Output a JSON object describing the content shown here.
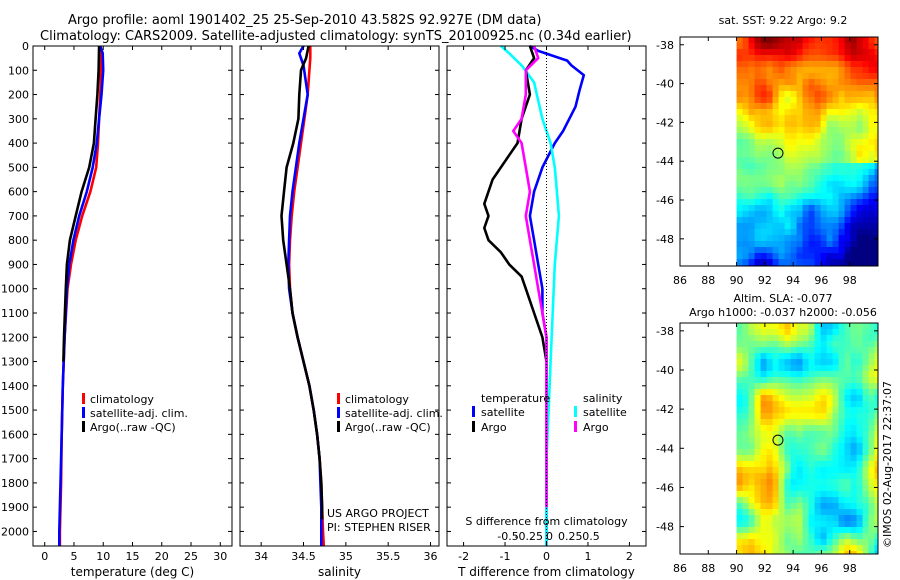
{
  "header": {
    "line1": "Argo profile: aoml 1901402_25 25-Sep-2010 43.582S 92.927E (DM data)",
    "line2": "Climatology: CARS2009. Satellite-adjusted climatology: synTS_20100925.nc (0.34d earlier)"
  },
  "colors": {
    "red": "#ff0000",
    "blue": "#0000ff",
    "black": "#000000",
    "cyan": "#00ffff",
    "magenta": "#ff00ff"
  },
  "chart_data": [
    {
      "type": "line",
      "id": "temperature",
      "xlabel": "temperature (deg C)",
      "xlim": [
        -2,
        32
      ],
      "ylim": [
        2060,
        0
      ],
      "xticks": [
        0,
        5,
        10,
        15,
        20,
        25,
        30
      ],
      "yticks": [
        0,
        100,
        200,
        300,
        400,
        500,
        600,
        700,
        800,
        900,
        1000,
        1100,
        1200,
        1300,
        1400,
        1500,
        1600,
        1700,
        1800,
        1900,
        2000
      ],
      "legend": [
        "climatology",
        "satellite-adj. clim.",
        "Argo(..raw -QC)"
      ],
      "series": [
        {
          "name": "climatology",
          "color": "red",
          "points": [
            [
              9.4,
              0
            ],
            [
              9.6,
              50
            ],
            [
              9.6,
              100
            ],
            [
              9.5,
              200
            ],
            [
              9.3,
              300
            ],
            [
              9.1,
              400
            ],
            [
              8.8,
              500
            ],
            [
              7.8,
              600
            ],
            [
              6.4,
              700
            ],
            [
              5.3,
              800
            ],
            [
              4.5,
              900
            ],
            [
              3.9,
              1000
            ],
            [
              3.4,
              1200
            ],
            [
              3.1,
              1400
            ],
            [
              2.9,
              1600
            ],
            [
              2.8,
              1800
            ],
            [
              2.6,
              2000
            ],
            [
              2.6,
              2060
            ]
          ]
        },
        {
          "name": "satellite-adj. clim.",
          "color": "blue",
          "points": [
            [
              9.5,
              0
            ],
            [
              9.9,
              30
            ],
            [
              10.0,
              100
            ],
            [
              9.7,
              200
            ],
            [
              9.3,
              300
            ],
            [
              8.9,
              400
            ],
            [
              8.2,
              500
            ],
            [
              7.2,
              600
            ],
            [
              5.9,
              700
            ],
            [
              4.9,
              800
            ],
            [
              4.2,
              900
            ],
            [
              3.8,
              1000
            ],
            [
              3.4,
              1200
            ],
            [
              3.1,
              1400
            ],
            [
              2.9,
              1600
            ],
            [
              2.7,
              1800
            ],
            [
              2.5,
              2000
            ],
            [
              2.5,
              2060
            ]
          ]
        },
        {
          "name": "Argo(..raw -QC)",
          "color": "black",
          "points": [
            [
              9.3,
              0
            ],
            [
              9.2,
              100
            ],
            [
              9.0,
              200
            ],
            [
              8.7,
              300
            ],
            [
              8.4,
              400
            ],
            [
              7.6,
              500
            ],
            [
              6.3,
              600
            ],
            [
              5.3,
              700
            ],
            [
              4.3,
              800
            ],
            [
              3.8,
              900
            ],
            [
              3.6,
              1000
            ],
            [
              3.3,
              1200
            ],
            [
              3.2,
              1300
            ]
          ]
        }
      ]
    },
    {
      "type": "line",
      "id": "salinity",
      "xlabel": "salinity",
      "xlim": [
        33.75,
        36.1
      ],
      "ylim": [
        2060,
        0
      ],
      "xticks": [
        34,
        34.5,
        35,
        35.5,
        36
      ],
      "legend": [
        "climatology",
        "satellite-adj. clim.",
        "Argo(..raw -QC)"
      ],
      "annotation": [
        "US ARGO PROJECT",
        "PI: STEPHEN RISER"
      ],
      "series": [
        {
          "name": "climatology",
          "color": "red",
          "points": [
            [
              34.58,
              0
            ],
            [
              34.58,
              50
            ],
            [
              34.57,
              100
            ],
            [
              34.55,
              200
            ],
            [
              34.51,
              300
            ],
            [
              34.47,
              400
            ],
            [
              34.43,
              500
            ],
            [
              34.39,
              600
            ],
            [
              34.36,
              700
            ],
            [
              34.34,
              800
            ],
            [
              34.33,
              900
            ],
            [
              34.34,
              1000
            ],
            [
              34.37,
              1100
            ],
            [
              34.43,
              1200
            ],
            [
              34.5,
              1300
            ],
            [
              34.57,
              1400
            ],
            [
              34.62,
              1500
            ],
            [
              34.66,
              1600
            ],
            [
              34.69,
              1700
            ],
            [
              34.71,
              1800
            ],
            [
              34.72,
              1900
            ],
            [
              34.73,
              2000
            ],
            [
              34.74,
              2060
            ]
          ]
        },
        {
          "name": "satellite-adj. clim.",
          "color": "blue",
          "points": [
            [
              34.5,
              0
            ],
            [
              34.45,
              30
            ],
            [
              34.5,
              80
            ],
            [
              34.55,
              200
            ],
            [
              34.5,
              300
            ],
            [
              34.45,
              400
            ],
            [
              34.41,
              500
            ],
            [
              34.37,
              600
            ],
            [
              34.34,
              700
            ],
            [
              34.33,
              800
            ],
            [
              34.32,
              900
            ],
            [
              34.33,
              1000
            ],
            [
              34.37,
              1100
            ],
            [
              34.43,
              1200
            ],
            [
              34.5,
              1300
            ],
            [
              34.57,
              1400
            ],
            [
              34.62,
              1500
            ],
            [
              34.66,
              1600
            ],
            [
              34.69,
              1700
            ],
            [
              34.7,
              1800
            ],
            [
              34.71,
              1900
            ],
            [
              34.71,
              2000
            ],
            [
              34.71,
              2060
            ]
          ]
        },
        {
          "name": "Argo(..raw -QC)",
          "color": "black",
          "points": [
            [
              34.56,
              0
            ],
            [
              34.53,
              50
            ],
            [
              34.47,
              100
            ],
            [
              34.45,
              200
            ],
            [
              34.44,
              300
            ],
            [
              34.38,
              400
            ],
            [
              34.3,
              500
            ],
            [
              34.27,
              600
            ],
            [
              34.24,
              700
            ],
            [
              34.26,
              800
            ],
            [
              34.3,
              900
            ],
            [
              34.34,
              1000
            ],
            [
              34.37,
              1100
            ],
            [
              34.43,
              1200
            ],
            [
              34.5,
              1300
            ],
            [
              34.57,
              1400
            ],
            [
              34.62,
              1500
            ],
            [
              34.66,
              1600
            ],
            [
              34.69,
              1700
            ],
            [
              34.71,
              1800
            ],
            [
              34.72,
              1900
            ],
            [
              34.72,
              1950
            ]
          ]
        }
      ]
    },
    {
      "type": "line",
      "id": "differences",
      "xlabel": "T difference from climatology",
      "top_label": "S difference from climatology",
      "xlim": [
        -2.4,
        2.4
      ],
      "ylim": [
        2060,
        0
      ],
      "xticks": [
        -2,
        -1,
        0,
        1,
        2
      ],
      "s_xticks": [
        "-0.5",
        "-0.25",
        "0",
        "0.25",
        "0.5"
      ],
      "legend_titles": [
        "temperature",
        "salinity"
      ],
      "legend": [
        "satellite",
        "Argo",
        "satellite",
        "Argo"
      ],
      "series": [
        {
          "name": "temperature satellite",
          "color": "blue",
          "points": [
            [
              -0.4,
              0
            ],
            [
              -0.2,
              20
            ],
            [
              0.5,
              60
            ],
            [
              0.6,
              80
            ],
            [
              0.9,
              120
            ],
            [
              0.8,
              180
            ],
            [
              0.7,
              250
            ],
            [
              0.4,
              350
            ],
            [
              0.2,
              400
            ],
            [
              -0.1,
              500
            ],
            [
              -0.3,
              600
            ],
            [
              -0.4,
              700
            ],
            [
              -0.3,
              800
            ],
            [
              -0.2,
              900
            ],
            [
              -0.1,
              1000
            ],
            [
              -0.1,
              1100
            ],
            [
              0,
              1200
            ],
            [
              0,
              1300
            ],
            [
              0,
              2060
            ]
          ]
        },
        {
          "name": "salinity satellite",
          "color": "cyan",
          "points": [
            [
              -1.1,
              0
            ],
            [
              -0.9,
              30
            ],
            [
              -0.6,
              80
            ],
            [
              -0.3,
              150
            ],
            [
              -0.1,
              300
            ],
            [
              0.1,
              400
            ],
            [
              0.2,
              500
            ],
            [
              0.25,
              600
            ],
            [
              0.3,
              700
            ],
            [
              0.2,
              900
            ],
            [
              0.15,
              1100
            ],
            [
              0.1,
              1300
            ],
            [
              0.05,
              1500
            ],
            [
              0,
              1700
            ],
            [
              0,
              2060
            ]
          ]
        },
        {
          "name": "temperature Argo",
          "color": "black",
          "points": [
            [
              -0.4,
              0
            ],
            [
              -0.3,
              50
            ],
            [
              -0.5,
              100
            ],
            [
              -0.4,
              200
            ],
            [
              -0.6,
              300
            ],
            [
              -0.7,
              400
            ],
            [
              -0.9,
              450
            ],
            [
              -1.3,
              550
            ],
            [
              -1.5,
              650
            ],
            [
              -1.4,
              700
            ],
            [
              -1.5,
              750
            ],
            [
              -1.4,
              800
            ],
            [
              -1.1,
              850
            ],
            [
              -0.9,
              900
            ],
            [
              -0.6,
              950
            ],
            [
              -0.5,
              1000
            ],
            [
              -0.3,
              1100
            ],
            [
              -0.1,
              1200
            ],
            [
              0,
              1300
            ]
          ]
        },
        {
          "name": "salinity Argo",
          "color": "magenta",
          "points": [
            [
              -0.3,
              0
            ],
            [
              -0.2,
              50
            ],
            [
              -0.5,
              100
            ],
            [
              -0.5,
              200
            ],
            [
              -0.6,
              300
            ],
            [
              -0.8,
              350
            ],
            [
              -0.6,
              400
            ],
            [
              -0.5,
              500
            ],
            [
              -0.4,
              600
            ],
            [
              -0.5,
              700
            ],
            [
              -0.4,
              800
            ],
            [
              -0.3,
              900
            ],
            [
              -0.2,
              1000
            ],
            [
              -0.1,
              1100
            ],
            [
              0,
              1200
            ],
            [
              0,
              1400
            ],
            [
              0,
              1900
            ]
          ]
        }
      ]
    },
    {
      "type": "heatmap",
      "id": "sst-map",
      "title": "sat. SST: 9.22  Argo: 9.2",
      "xlim": [
        86,
        100
      ],
      "ylim": [
        -49.4,
        -37.6
      ],
      "xticks": [
        86,
        88,
        90,
        92,
        94,
        96,
        98
      ],
      "yticks": [
        -38,
        -40,
        -42,
        -44,
        -46,
        -48
      ],
      "data_xrange": [
        90,
        100
      ],
      "marker": [
        92.927,
        -43.582
      ]
    },
    {
      "type": "heatmap",
      "id": "sla-map",
      "title_lines": [
        "Altim. SLA: -0.077",
        "Argo h1000: -0.037 h2000: -0.056"
      ],
      "xlim": [
        86,
        100
      ],
      "ylim": [
        -49.4,
        -37.6
      ],
      "xticks": [
        86,
        88,
        90,
        92,
        94,
        96,
        98
      ],
      "yticks": [
        -38,
        -40,
        -42,
        -44,
        -46,
        -48
      ],
      "data_xrange": [
        90,
        100
      ],
      "marker": [
        92.927,
        -43.582
      ]
    }
  ],
  "footer_stamp": "©IMOS 02-Aug-2017 22:37:07"
}
